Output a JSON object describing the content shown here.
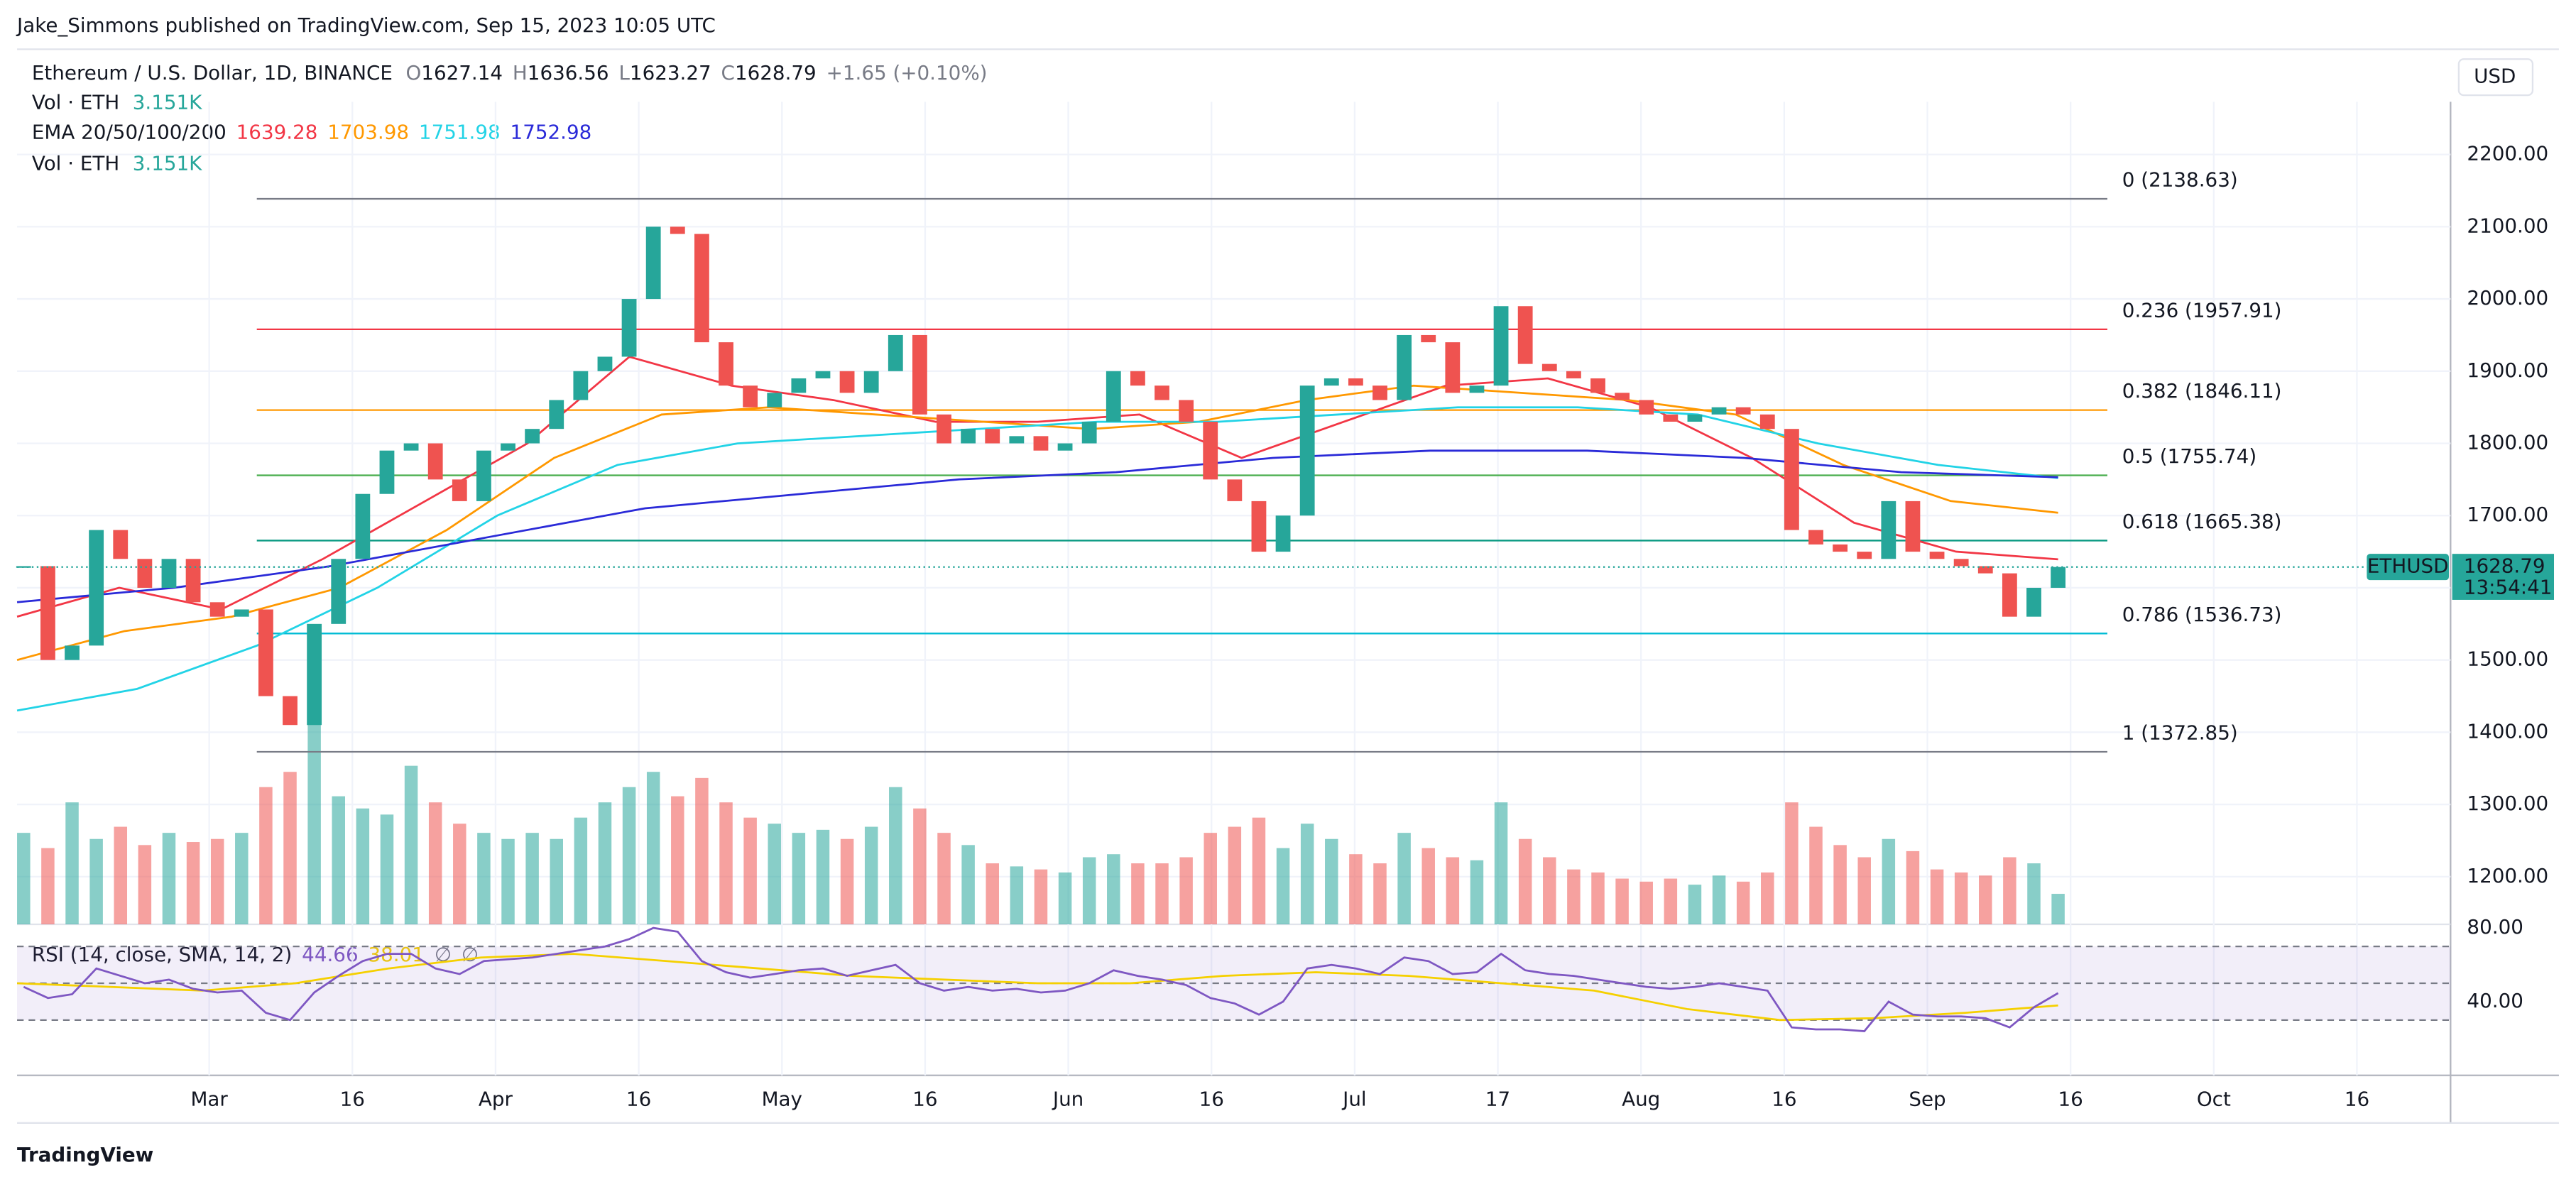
{
  "header": {
    "publisher": "Jake_Simmons published on TradingView.com, Sep 15, 2023 10:05 UTC"
  },
  "chart_data": {
    "type": "candlestick",
    "title": "Ethereum / U.S. Dollar, 1D, BINANCE",
    "ohlc": [
      {
        "label": "O",
        "value": 1627.14
      },
      {
        "label": "H",
        "value": 1636.56
      },
      {
        "label": "L",
        "value": 1623.27
      },
      {
        "label": "C",
        "value": 1628.79
      }
    ],
    "change": "+1.65 (+0.10%)",
    "volume_rows": [
      {
        "label": "Vol · ETH",
        "value": "3.151K"
      },
      {
        "label": "Vol · ETH",
        "value": "3.151K"
      }
    ],
    "ema_label": "EMA 20/50/100/200",
    "ema": [
      {
        "value": 1639.28,
        "color": "#f23645",
        "values": [
          1560,
          1600,
          1570,
          1640,
          1720,
          1800,
          1920,
          1880,
          1860,
          1830,
          1830,
          1840,
          1780,
          1830,
          1880,
          1890,
          1850,
          1780,
          1690,
          1650,
          1639.28
        ]
      },
      {
        "value": 1703.98,
        "color": "#ff9800",
        "values": [
          1500,
          1540,
          1560,
          1600,
          1680,
          1780,
          1840,
          1850,
          1840,
          1830,
          1820,
          1830,
          1860,
          1880,
          1870,
          1860,
          1840,
          1770,
          1720,
          1703.98
        ]
      },
      {
        "value": 1751.98,
        "color": "#22d3e6",
        "values": [
          1430,
          1460,
          1520,
          1600,
          1700,
          1770,
          1800,
          1810,
          1820,
          1830,
          1830,
          1840,
          1850,
          1850,
          1840,
          1800,
          1770,
          1751.98
        ]
      },
      {
        "value": 1752.98,
        "color": "#2a2ad8",
        "values": [
          1580,
          1600,
          1630,
          1670,
          1710,
          1730,
          1750,
          1760,
          1780,
          1790,
          1790,
          1780,
          1760,
          1752.98
        ]
      }
    ],
    "currency": "USD",
    "ylim": [
      1134,
      2273
    ],
    "yticks": [
      {
        "value": 1200,
        "label": "1200.00"
      },
      {
        "value": 1300,
        "label": "1300.00"
      },
      {
        "value": 1400,
        "label": "1400.00"
      },
      {
        "value": 1500,
        "label": "1500.00"
      },
      {
        "value": 1600,
        "label": "1600.00"
      },
      {
        "value": 1700,
        "label": "1700.00"
      },
      {
        "value": 1800,
        "label": "1800.00"
      },
      {
        "value": 1900,
        "label": "1900.00"
      },
      {
        "value": 2000,
        "label": "2000.00"
      },
      {
        "value": 2100,
        "label": "2100.00"
      },
      {
        "value": 2200,
        "label": "2200.00"
      }
    ],
    "xticks": [
      "Mar",
      "16",
      "Apr",
      "16",
      "May",
      "16",
      "Jun",
      "16",
      "Jul",
      "17",
      "Aug",
      "16",
      "Sep",
      "16",
      "Oct",
      "16"
    ],
    "fib_levels": [
      {
        "label": "0 (2138.63)",
        "price": 2138.63,
        "color": "#787b86"
      },
      {
        "label": "0.236 (1957.91)",
        "price": 1957.91,
        "color": "#f23645"
      },
      {
        "label": "0.382 (1846.11)",
        "price": 1846.11,
        "color": "#ff9800"
      },
      {
        "label": "0.5 (1755.74)",
        "price": 1755.74,
        "color": "#4caf50"
      },
      {
        "label": "0.618 (1665.38)",
        "price": 1665.38,
        "color": "#089981"
      },
      {
        "label": "0.786 (1536.73)",
        "price": 1536.73,
        "color": "#00bcd4"
      },
      {
        "label": "1 (1372.85)",
        "price": 1372.85,
        "color": "#787b86"
      }
    ],
    "last_price": {
      "symbol": "ETHUSD",
      "value": 1628.79,
      "countdown": "13:54:41"
    },
    "up_color": "#26a69a",
    "down_color": "#ef5350",
    "closes": [
      1630,
      1500,
      1520,
      1680,
      1640,
      1600,
      1640,
      1580,
      1560,
      1570,
      1450,
      1410,
      1550,
      1640,
      1730,
      1790,
      1800,
      1750,
      1720,
      1790,
      1800,
      1820,
      1860,
      1900,
      1920,
      2000,
      2100,
      2090,
      1940,
      1880,
      1850,
      1870,
      1890,
      1900,
      1870,
      1900,
      1950,
      1840,
      1800,
      1820,
      1800,
      1810,
      1790,
      1800,
      1830,
      1900,
      1880,
      1860,
      1830,
      1750,
      1720,
      1650,
      1700,
      1880,
      1890,
      1880,
      1860,
      1950,
      1940,
      1870,
      1880,
      1990,
      1910,
      1900,
      1890,
      1870,
      1860,
      1840,
      1830,
      1840,
      1850,
      1840,
      1820,
      1680,
      1660,
      1650,
      1640,
      1720,
      1650,
      1640,
      1630,
      1620,
      1560,
      1600,
      1628.79
    ],
    "volumes": [
      300,
      250,
      400,
      280,
      320,
      260,
      300,
      270,
      280,
      300,
      450,
      500,
      700,
      420,
      380,
      360,
      520,
      400,
      330,
      300,
      280,
      300,
      280,
      350,
      400,
      450,
      500,
      420,
      480,
      400,
      350,
      330,
      300,
      310,
      280,
      320,
      450,
      380,
      300,
      260,
      200,
      190,
      180,
      170,
      220,
      230,
      200,
      200,
      220,
      300,
      320,
      350,
      250,
      330,
      280,
      230,
      200,
      300,
      250,
      220,
      210,
      400,
      280,
      220,
      180,
      170,
      150,
      140,
      150,
      130,
      160,
      140,
      170,
      400,
      320,
      260,
      220,
      280,
      240,
      180,
      170,
      160,
      220,
      200,
      100
    ],
    "rsi": {
      "label": "RSI (14, close, SMA, 14, 2)",
      "value": 44.66,
      "sma": 38.01,
      "extras": [
        "∅",
        "∅"
      ],
      "ylim": [
        0,
        82
      ],
      "yticks": [
        {
          "value": 80,
          "label": "80.00"
        },
        {
          "value": 40,
          "label": "40.00"
        }
      ],
      "levels": [
        70,
        50,
        30
      ],
      "color": "#7e57c2",
      "sma_color": "#f5d000",
      "values": [
        48,
        42,
        44,
        58,
        54,
        50,
        52,
        47,
        45,
        46,
        34,
        30,
        45,
        54,
        62,
        66,
        66,
        58,
        55,
        62,
        63,
        64,
        66,
        68,
        70,
        74,
        80,
        78,
        62,
        56,
        53,
        55,
        57,
        58,
        54,
        57,
        60,
        50,
        46,
        48,
        46,
        47,
        45,
        46,
        50,
        57,
        54,
        52,
        49,
        42,
        39,
        33,
        40,
        58,
        60,
        58,
        55,
        64,
        62,
        55,
        56,
        66,
        57,
        55,
        54,
        52,
        50,
        48,
        47,
        48,
        50,
        48,
        46,
        26,
        25,
        25,
        24,
        40,
        33,
        32,
        32,
        31,
        26,
        37,
        44.66
      ],
      "sma_values": [
        50,
        48,
        46,
        50,
        58,
        64,
        66,
        62,
        58,
        54,
        52,
        50,
        50,
        54,
        56,
        54,
        50,
        46,
        36,
        30,
        31,
        34,
        38.01
      ]
    },
    "footer": "TradingView"
  }
}
